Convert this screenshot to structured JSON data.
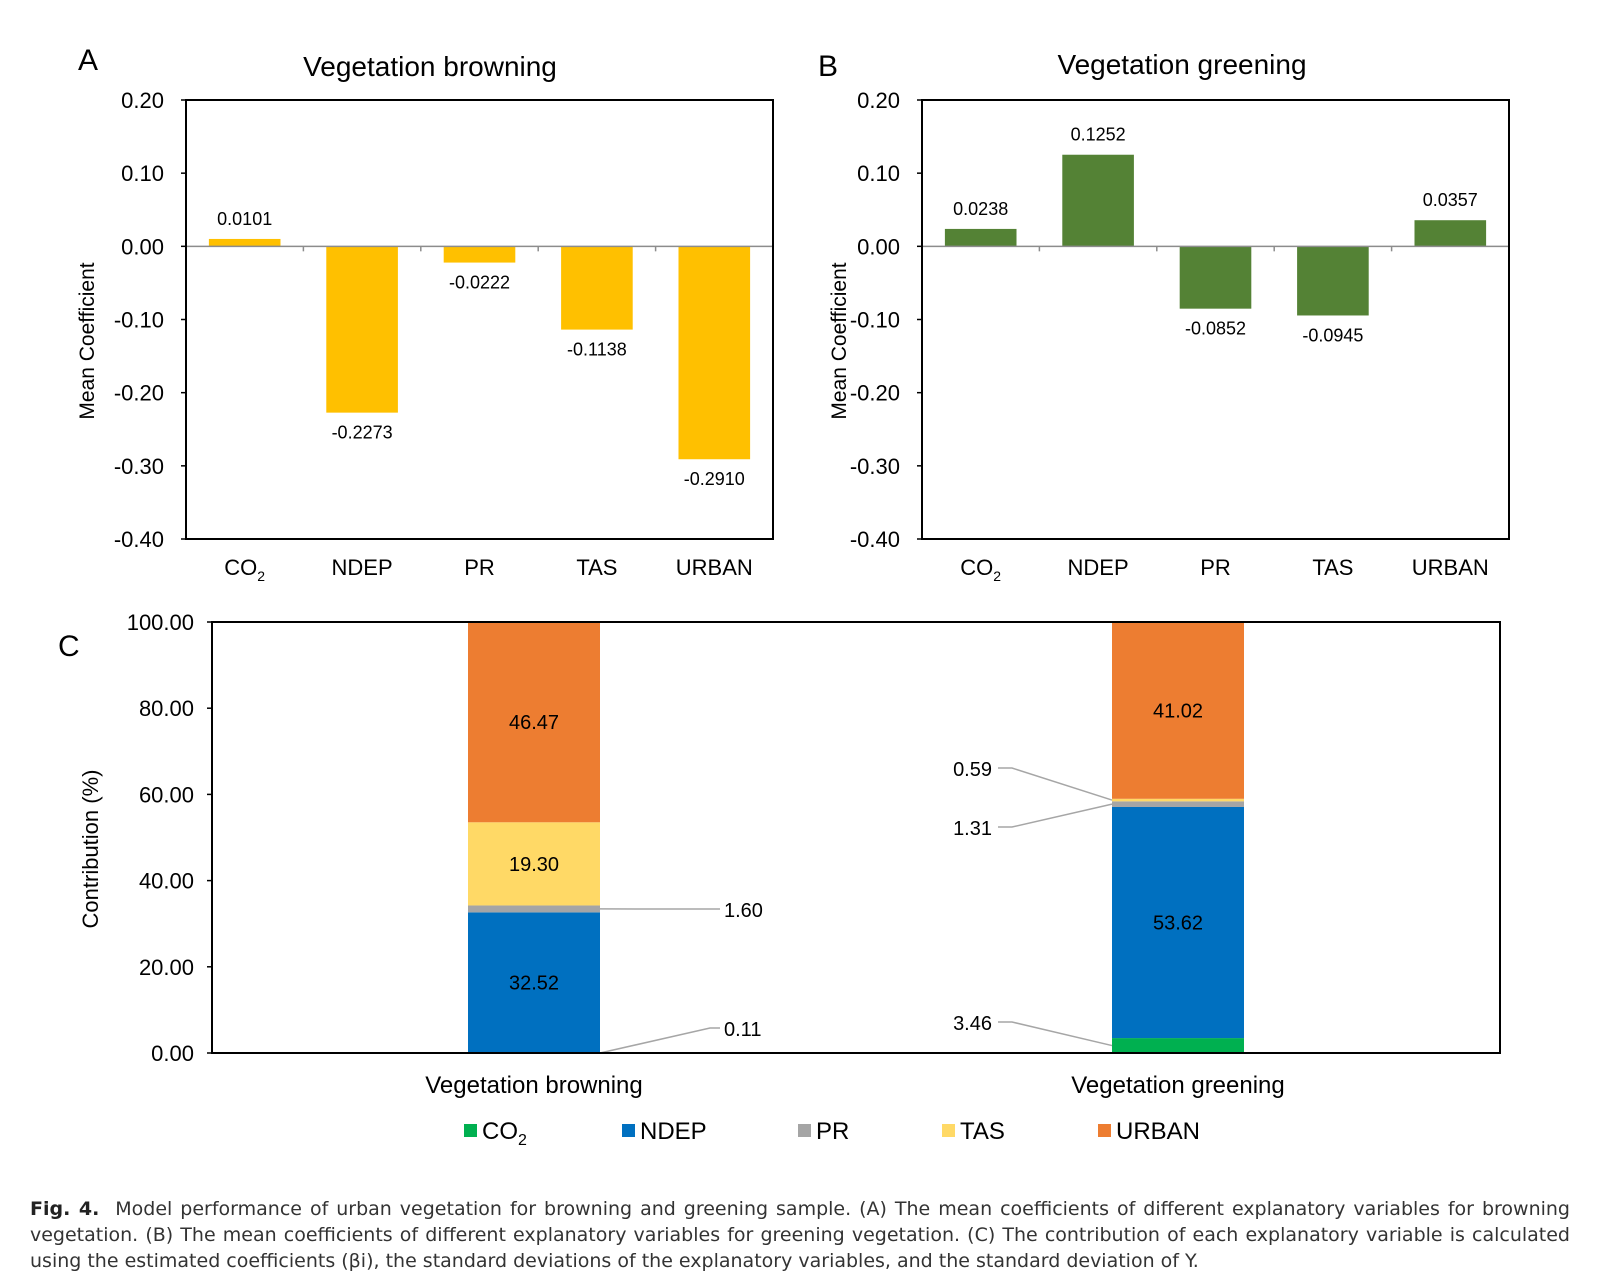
{
  "panels": [
    {
      "letter": "A",
      "title": "Vegetation browning",
      "ylabel": "Mean Coefficient",
      "color": "#FFC000",
      "chart_data": {
        "type": "bar",
        "categories": [
          "CO2",
          "NDEP",
          "PR",
          "TAS",
          "URBAN"
        ],
        "values": [
          0.0101,
          -0.2273,
          -0.0222,
          -0.1138,
          -0.291
        ],
        "value_labels": [
          "0.0101",
          "-0.2273",
          "-0.0222",
          "-0.1138",
          "-0.2910"
        ],
        "ylim": [
          -0.4,
          0.2
        ],
        "yticks": [
          "0.20",
          "0.10",
          "0.00",
          "-0.10",
          "-0.20",
          "-0.30",
          "-0.40"
        ]
      }
    },
    {
      "letter": "B",
      "title": "Vegetation greening",
      "ylabel": "Mean Coefficient",
      "color": "#548235",
      "chart_data": {
        "type": "bar",
        "categories": [
          "CO2",
          "NDEP",
          "PR",
          "TAS",
          "URBAN"
        ],
        "values": [
          0.0238,
          0.1252,
          -0.0852,
          -0.0945,
          0.0357
        ],
        "value_labels": [
          "0.0238",
          "0.1252",
          "-0.0852",
          "-0.0945",
          "0.0357"
        ],
        "ylim": [
          -0.4,
          0.2
        ],
        "yticks": [
          "0.20",
          "0.10",
          "0.00",
          "-0.10",
          "-0.20",
          "-0.30",
          "-0.40"
        ]
      }
    }
  ],
  "panel_c": {
    "letter": "C",
    "ylabel": "Contribution (%)",
    "chart_data": {
      "type": "bar",
      "stacked": true,
      "categories": [
        "Vegetation browning",
        "Vegetation greening"
      ],
      "ylim": [
        0,
        100
      ],
      "yticks": [
        "100.00",
        "80.00",
        "60.00",
        "40.00",
        "20.00",
        "0.00"
      ],
      "series": [
        {
          "name": "CO2",
          "color": "#00B050",
          "values": [
            0.11,
            3.46
          ],
          "labels": [
            "0.11",
            "3.46"
          ]
        },
        {
          "name": "NDEP",
          "color": "#0070C0",
          "values": [
            32.52,
            53.62
          ],
          "labels": [
            "32.52",
            "53.62"
          ]
        },
        {
          "name": "PR",
          "color": "#A5A5A5",
          "values": [
            1.6,
            1.31
          ],
          "labels": [
            "1.60",
            "1.31"
          ]
        },
        {
          "name": "TAS",
          "color": "#FFD966",
          "values": [
            19.3,
            0.59
          ],
          "labels": [
            "19.30",
            "0.59"
          ]
        },
        {
          "name": "URBAN",
          "color": "#ED7D31",
          "values": [
            46.47,
            41.02
          ],
          "labels": [
            "46.47",
            "41.02"
          ]
        }
      ],
      "legend": "bottom"
    }
  },
  "caption": {
    "figure_label": "Fig. 4.",
    "text": "Model performance of urban vegetation for browning and greening sample. (A) The mean coefficients of different explanatory variables for browning vegetation. (B) The mean coefficients of different explanatory variables for greening vegetation. (C) The contribution of each explanatory variable is calculated using the estimated coefficients (βi), the standard deviations of the explanatory variables, and the standard deviation of Y."
  }
}
